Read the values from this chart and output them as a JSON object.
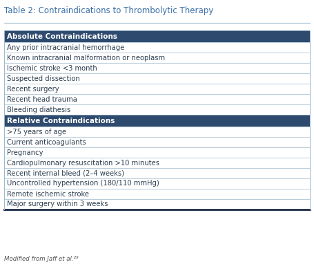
{
  "title": "Table 2: Contraindications to Thrombolytic Therapy",
  "header_bg": "#2E4A6E",
  "header_text_color": "#FFFFFF",
  "border_color": "#9DB8CC",
  "bottom_border_color": "#1B2A45",
  "title_color": "#3A6FA8",
  "text_color": "#2C3E50",
  "bg_color": "#FFFFFF",
  "footnote": "Modified from Jaff et al.²⁹",
  "title_fontsize": 8.5,
  "header_fontsize": 7.5,
  "row_fontsize": 7.2,
  "footnote_fontsize": 6.2,
  "sections": [
    {
      "header": "Absolute Contraindications",
      "rows": [
        "Any prior intracranial hemorrhage",
        "Known intracranial malformation or neoplasm",
        "Ischemic stroke <3 month",
        "Suspected dissection",
        "Recent surgery",
        "Recent head trauma",
        "Bleeding diathesis"
      ]
    },
    {
      "header": "Relative Contraindications",
      "rows": [
        ">75 years of age",
        "Current anticoagulants",
        "Pregnancy",
        "Cardiopulmonary resuscitation >10 minutes",
        "Recent internal bleed (2–4 weeks)",
        "Uncontrolled hypertension (180/110 mmHg)",
        "Remote ischemic stroke",
        "Major surgery within 3 weeks"
      ]
    }
  ]
}
